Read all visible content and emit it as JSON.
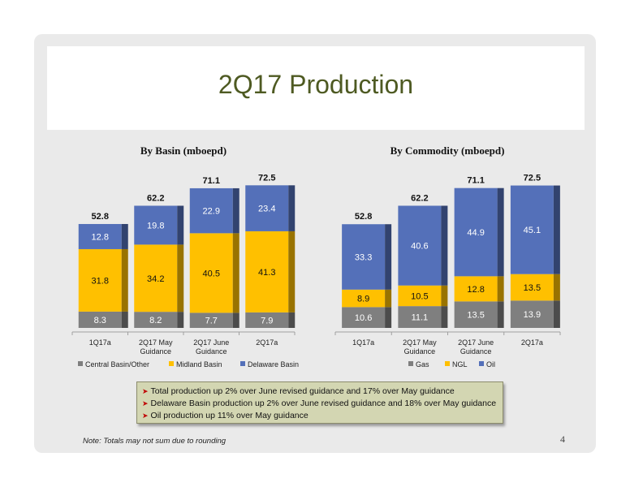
{
  "slide": {
    "title": "2Q17 Production",
    "callout": [
      "Total production up 2% over June revised guidance and 17% over May guidance",
      "Delaware Basin production up 2% over June revised guidance and 18% over May guidance",
      "Oil production up 11% over May guidance"
    ],
    "note": "Note: Totals may not sum due to rounding",
    "page_number": "4"
  },
  "chart_data": [
    {
      "type": "bar",
      "stacked": true,
      "title": "By Basin (mboepd)",
      "categories": [
        "1Q17a",
        "2Q17 May Guidance",
        "2Q17 June Guidance",
        "2Q17a"
      ],
      "series": [
        {
          "name": "Central Basin/Other",
          "color": "#7f7f7f",
          "values": [
            8.3,
            8.2,
            7.7,
            7.9
          ]
        },
        {
          "name": "Midland Basin",
          "color": "#ffc000",
          "values": [
            31.8,
            34.2,
            40.5,
            41.3
          ]
        },
        {
          "name": "Delaware Basin",
          "color": "#5470b9",
          "values": [
            12.8,
            19.8,
            22.9,
            23.4
          ]
        }
      ],
      "totals": [
        52.8,
        62.2,
        71.1,
        72.5
      ],
      "legend_position": "bottom"
    },
    {
      "type": "bar",
      "stacked": true,
      "title": "By Commodity (mboepd)",
      "categories": [
        "1Q17a",
        "2Q17 May Guidance",
        "2Q17 June Guidance",
        "2Q17a"
      ],
      "series": [
        {
          "name": "Gas",
          "color": "#7f7f7f",
          "values": [
            10.6,
            11.1,
            13.5,
            13.9
          ]
        },
        {
          "name": "NGL",
          "color": "#ffc000",
          "values": [
            8.9,
            10.5,
            12.8,
            13.5
          ]
        },
        {
          "name": "Oil",
          "color": "#5470b9",
          "values": [
            33.3,
            40.6,
            44.9,
            45.1
          ]
        }
      ],
      "totals": [
        52.8,
        62.2,
        71.1,
        72.5
      ],
      "legend_position": "bottom"
    }
  ]
}
